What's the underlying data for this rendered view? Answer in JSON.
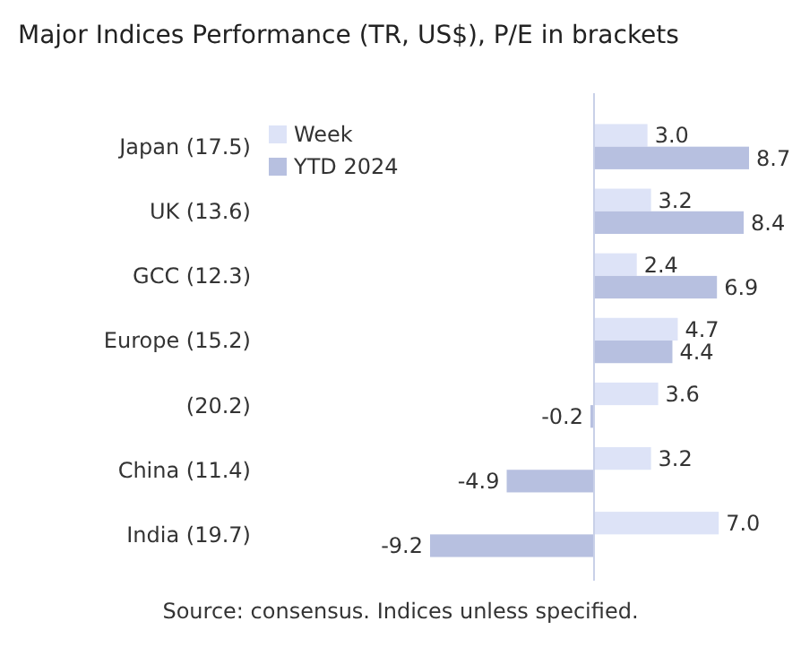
{
  "chart_data": {
    "type": "bar",
    "orientation": "horizontal",
    "title": "Major Indices Performance (TR, US$), P/E in brackets",
    "categories": [
      "Japan (17.5)",
      "UK (13.6)",
      "GCC (12.3)",
      "Europe (15.2)",
      "(20.2)",
      "China (11.4)",
      "India (19.7)"
    ],
    "series": [
      {
        "name": "Week",
        "color": "#dde3f7",
        "values": [
          3.0,
          3.2,
          2.4,
          4.7,
          3.6,
          3.2,
          7.0
        ],
        "value_labels": [
          "3.0",
          "3.2",
          "2.4",
          "4.7",
          "3.6",
          "3.2",
          "7.0"
        ]
      },
      {
        "name": "YTD 2024",
        "color": "#b7c0e0",
        "values": [
          8.7,
          8.4,
          6.9,
          4.4,
          -0.2,
          -4.9,
          -9.2
        ],
        "value_labels": [
          "8.7",
          "8.4",
          "6.9",
          "4.4",
          "-0.2",
          "-4.9",
          "-9.2"
        ]
      }
    ],
    "legend": "top left",
    "annotations": [
      "Source: consensus. Indices unless specified."
    ]
  }
}
